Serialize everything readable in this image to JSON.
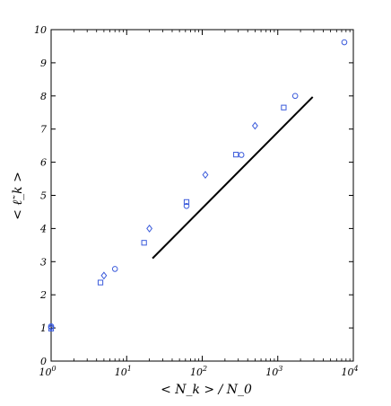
{
  "chart_data": {
    "type": "scatter",
    "title": "",
    "xlabel": "< N_k > / N_0",
    "ylabel": "< ℓ̃_k >",
    "xscale": "log",
    "xlim": [
      1,
      10000
    ],
    "ylim": [
      0,
      10
    ],
    "xticks": [
      {
        "value": 1,
        "base": "10",
        "exp": "0"
      },
      {
        "value": 10,
        "base": "10",
        "exp": "1"
      },
      {
        "value": 100,
        "base": "10",
        "exp": "2"
      },
      {
        "value": 1000,
        "base": "10",
        "exp": "3"
      },
      {
        "value": 10000,
        "base": "10",
        "exp": "4"
      }
    ],
    "yticks": [
      "0",
      "1",
      "2",
      "3",
      "4",
      "5",
      "6",
      "7",
      "8",
      "9",
      "10"
    ],
    "grid": false,
    "marker_color": "#3b5bdb",
    "line_color": "#000000",
    "series": [
      {
        "marker": "circle",
        "x": [
          1.0,
          7.0,
          62,
          330,
          1700,
          7600
        ],
        "y": [
          1.05,
          2.78,
          4.68,
          6.22,
          8.0,
          9.62
        ]
      },
      {
        "marker": "square",
        "x": [
          1.0,
          4.5,
          17,
          62,
          280,
          1200
        ],
        "y": [
          0.98,
          2.37,
          3.57,
          4.8,
          6.23,
          7.65
        ]
      },
      {
        "marker": "diamond",
        "x": [
          1.0,
          5.0,
          20,
          110,
          500
        ],
        "y": [
          1.02,
          2.58,
          4.0,
          5.62,
          7.1
        ]
      }
    ],
    "reference_line": {
      "x": [
        22,
        2900
      ],
      "y": [
        3.1,
        7.97
      ]
    }
  }
}
